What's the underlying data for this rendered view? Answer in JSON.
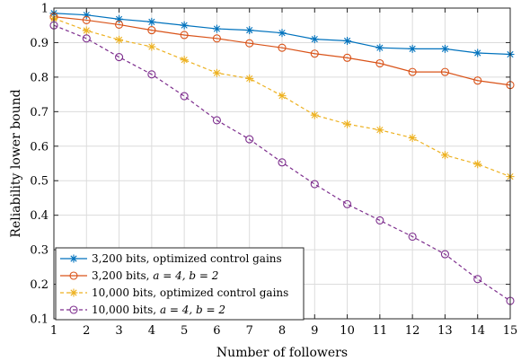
{
  "chart_data": {
    "type": "line",
    "title": "",
    "xlabel": "Number of followers",
    "ylabel": "Reliability lower bound",
    "xlim": [
      1,
      15
    ],
    "ylim": [
      0.1,
      1
    ],
    "grid": true,
    "legend_position": "bottom-left",
    "x": [
      1,
      2,
      3,
      4,
      5,
      6,
      7,
      8,
      9,
      10,
      11,
      12,
      13,
      14,
      15
    ],
    "x_ticks": [
      "1",
      "2",
      "3",
      "4",
      "5",
      "6",
      "7",
      "8",
      "9",
      "10",
      "11",
      "12",
      "13",
      "14",
      "15"
    ],
    "y_ticks": [
      "0.1",
      "0.2",
      "0.3",
      "0.4",
      "0.5",
      "0.6",
      "0.7",
      "0.8",
      "0.9",
      "1"
    ],
    "series": [
      {
        "name": "3,200 bits, optimized control gains",
        "legend_prefix": "3,200 bits, optimized control gains",
        "legend_math": "",
        "color": "#0072BD",
        "line_style": "solid",
        "marker": "asterisk",
        "values": [
          0.985,
          0.98,
          0.968,
          0.96,
          0.95,
          0.94,
          0.936,
          0.928,
          0.91,
          0.905,
          0.885,
          0.882,
          0.882,
          0.87,
          0.866
        ]
      },
      {
        "name": "3,200 bits, a = 4, b = 2",
        "legend_prefix": "3,200 bits, ",
        "legend_math": "a = 4, b = 2",
        "color": "#D95319",
        "line_style": "solid",
        "marker": "circle",
        "values": [
          0.975,
          0.965,
          0.952,
          0.936,
          0.922,
          0.912,
          0.898,
          0.885,
          0.868,
          0.856,
          0.84,
          0.815,
          0.815,
          0.79,
          0.777
        ]
      },
      {
        "name": "10,000 bits, optimized control gains",
        "legend_prefix": "10,000 bits, optimized control gains",
        "legend_math": "",
        "color": "#EDB120",
        "line_style": "dashed",
        "marker": "asterisk",
        "values": [
          0.97,
          0.935,
          0.908,
          0.888,
          0.85,
          0.812,
          0.796,
          0.746,
          0.69,
          0.664,
          0.647,
          0.624,
          0.574,
          0.548,
          0.512
        ]
      },
      {
        "name": "10,000 bits, a = 4, b = 2",
        "legend_prefix": "10,000 bits, ",
        "legend_math": "a = 4, b = 2",
        "color": "#7E2F8E",
        "line_style": "dashed",
        "marker": "circle",
        "values": [
          0.95,
          0.912,
          0.858,
          0.808,
          0.745,
          0.675,
          0.62,
          0.553,
          0.49,
          0.432,
          0.385,
          0.338,
          0.287,
          0.215,
          0.152
        ]
      }
    ]
  }
}
